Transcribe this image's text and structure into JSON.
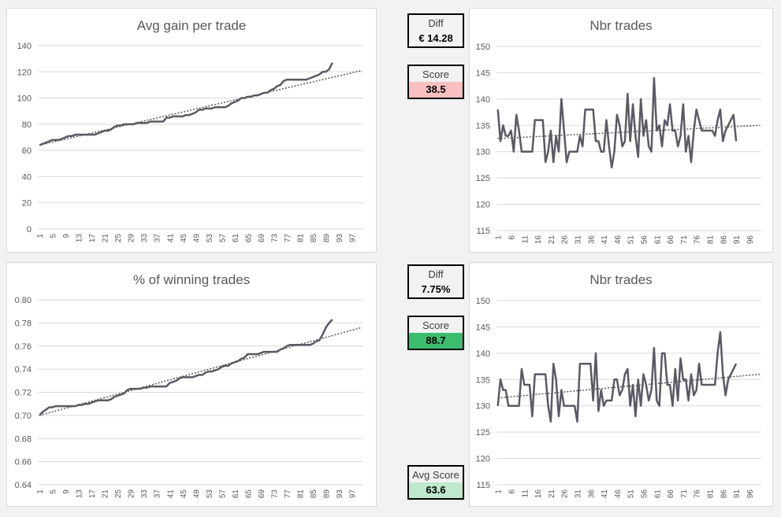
{
  "kpis": {
    "top_diff": {
      "label": "Diff",
      "value": "€ 14.28"
    },
    "top_score": {
      "label": "Score",
      "value": "38.5",
      "color": "#f8c0c0"
    },
    "bottom_diff": {
      "label": "Diff",
      "value": "7.75%"
    },
    "bottom_score": {
      "label": "Score",
      "value": "88.7",
      "color": "#3cbd6e"
    },
    "avg_score": {
      "label": "Avg Score",
      "value": "63.6",
      "color": "#bfe8cd"
    }
  },
  "chart_data": [
    {
      "type": "line",
      "title": "Avg gain per trade",
      "ylim": [
        0,
        140
      ],
      "ystep": 20,
      "ydec": 0,
      "xmax": 100,
      "xtick_every": 4,
      "trendline": [
        64,
        121
      ],
      "values": [
        64,
        65,
        66,
        67,
        68,
        68,
        68,
        69,
        70,
        71,
        71,
        72,
        72,
        72,
        72,
        72,
        72,
        72,
        73,
        74,
        75,
        75,
        76,
        78,
        79,
        79,
        80,
        80,
        80,
        80,
        81,
        81,
        81,
        81,
        82,
        82,
        82,
        82,
        82,
        85,
        85,
        86,
        86,
        86,
        86,
        87,
        87,
        88,
        89,
        91,
        91,
        92,
        92,
        92,
        93,
        93,
        93,
        93,
        94,
        96,
        97,
        98,
        100,
        100,
        101,
        101,
        102,
        102,
        103,
        104,
        104,
        106,
        107,
        109,
        110,
        113,
        114,
        114,
        114,
        114,
        114,
        114,
        114,
        115,
        116,
        117,
        118,
        120,
        120,
        122,
        127
      ]
    },
    {
      "type": "line",
      "title": "Nbr trades",
      "ylim": [
        115,
        150
      ],
      "ystep": 5,
      "ydec": 0,
      "xmax": 100,
      "xtick_every": 5,
      "trendline": [
        132.5,
        135
      ],
      "values": [
        138,
        132,
        135,
        133,
        133,
        134,
        130,
        137,
        134,
        130,
        130,
        130,
        130,
        130,
        136,
        136,
        136,
        136,
        128,
        130,
        134,
        128,
        133,
        130,
        140,
        134,
        128,
        130,
        130,
        130,
        130,
        133,
        131,
        138,
        138,
        138,
        138,
        132,
        132,
        130,
        130,
        136,
        131,
        127,
        130,
        137,
        135,
        131,
        132,
        141,
        132,
        139,
        133,
        129,
        140,
        133,
        136,
        131,
        130,
        144,
        134,
        135,
        131,
        136,
        135,
        139,
        134,
        134,
        131,
        133,
        139,
        130,
        133,
        128,
        134,
        138,
        136,
        134,
        134,
        134,
        134,
        134,
        133,
        136,
        138,
        132,
        134,
        135,
        136,
        137,
        132
      ]
    },
    {
      "type": "line",
      "title": "% of winning trades",
      "ylim": [
        0.64,
        0.8
      ],
      "ystep": 0.02,
      "ydec": 2,
      "xmax": 100,
      "xtick_every": 4,
      "trendline": [
        0.7,
        0.776
      ],
      "values": [
        0.7,
        0.703,
        0.705,
        0.707,
        0.707,
        0.708,
        0.708,
        0.708,
        0.708,
        0.708,
        0.708,
        0.708,
        0.709,
        0.709,
        0.71,
        0.71,
        0.711,
        0.712,
        0.713,
        0.713,
        0.713,
        0.713,
        0.714,
        0.716,
        0.717,
        0.718,
        0.719,
        0.722,
        0.723,
        0.723,
        0.723,
        0.723,
        0.724,
        0.724,
        0.725,
        0.725,
        0.725,
        0.725,
        0.725,
        0.725,
        0.728,
        0.729,
        0.73,
        0.732,
        0.733,
        0.733,
        0.733,
        0.733,
        0.734,
        0.735,
        0.735,
        0.737,
        0.738,
        0.738,
        0.739,
        0.74,
        0.742,
        0.743,
        0.743,
        0.745,
        0.746,
        0.747,
        0.749,
        0.75,
        0.753,
        0.753,
        0.753,
        0.753,
        0.754,
        0.755,
        0.755,
        0.755,
        0.755,
        0.755,
        0.757,
        0.758,
        0.76,
        0.761,
        0.761,
        0.761,
        0.761,
        0.761,
        0.761,
        0.761,
        0.762,
        0.764,
        0.765,
        0.77,
        0.776,
        0.78,
        0.783
      ]
    },
    {
      "type": "line",
      "title": "Nbr trades",
      "ylim": [
        115,
        150
      ],
      "ystep": 5,
      "ydec": 0,
      "xmax": 100,
      "xtick_every": 5,
      "trendline": [
        131.5,
        136
      ],
      "values": [
        130,
        135,
        133,
        133,
        130,
        130,
        130,
        130,
        130,
        137,
        134,
        134,
        134,
        128,
        136,
        136,
        136,
        136,
        136,
        130,
        127,
        138,
        135,
        128,
        133,
        130,
        130,
        130,
        130,
        130,
        127,
        138,
        138,
        138,
        138,
        138,
        131,
        140,
        129,
        133,
        130,
        131,
        131,
        131,
        135,
        135,
        132,
        133,
        136,
        137,
        130,
        134,
        128,
        135,
        130,
        136,
        134,
        131,
        133,
        141,
        131,
        130,
        140,
        140,
        134,
        134,
        130,
        137,
        131,
        139,
        135,
        135,
        131,
        136,
        132,
        133,
        138,
        134,
        134,
        134,
        134,
        134,
        134,
        140,
        144,
        136,
        132,
        135,
        136,
        137,
        138
      ]
    }
  ]
}
